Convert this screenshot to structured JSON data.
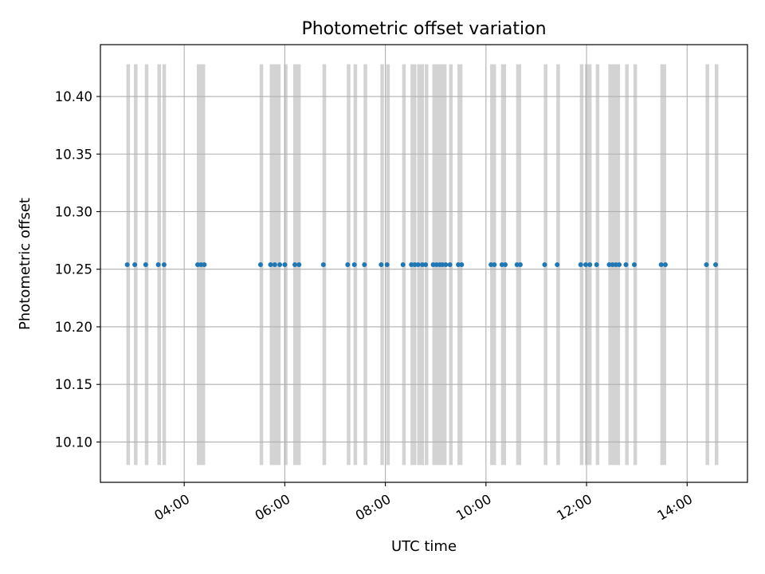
{
  "chart_data": {
    "type": "scatter",
    "title": "Photometric offset variation",
    "xlabel": "UTC time",
    "ylabel": "Photometric offset",
    "xlim": [
      "02:20",
      "15:12"
    ],
    "ylim": [
      10.065,
      10.445
    ],
    "x_ticks": [
      "04:00",
      "06:00",
      "08:00",
      "10:00",
      "12:00",
      "14:00"
    ],
    "y_ticks": [
      "10.10",
      "10.15",
      "10.20",
      "10.25",
      "10.30",
      "10.35",
      "10.40"
    ],
    "grid": true,
    "band_range": [
      10.08,
      10.428
    ],
    "band_color": "#d3d3d3",
    "point_color": "#1f77b4",
    "series": [
      {
        "points": [
          {
            "x": "02:52",
            "y": 10.254
          },
          {
            "x": "03:01",
            "y": 10.254
          },
          {
            "x": "03:14",
            "y": 10.254
          },
          {
            "x": "03:29",
            "y": 10.254
          },
          {
            "x": "03:36",
            "y": 10.254
          },
          {
            "x": "04:16",
            "y": 10.254
          },
          {
            "x": "04:20",
            "y": 10.254
          },
          {
            "x": "04:24",
            "y": 10.254
          },
          {
            "x": "05:31",
            "y": 10.254
          },
          {
            "x": "05:43",
            "y": 10.254
          },
          {
            "x": "05:48",
            "y": 10.254
          },
          {
            "x": "05:54",
            "y": 10.254
          },
          {
            "x": "06:00",
            "y": 10.254
          },
          {
            "x": "06:12",
            "y": 10.254
          },
          {
            "x": "06:17",
            "y": 10.254
          },
          {
            "x": "06:46",
            "y": 10.254
          },
          {
            "x": "07:15",
            "y": 10.254
          },
          {
            "x": "07:23",
            "y": 10.254
          },
          {
            "x": "07:35",
            "y": 10.254
          },
          {
            "x": "07:55",
            "y": 10.254
          },
          {
            "x": "08:02",
            "y": 10.254
          },
          {
            "x": "08:21",
            "y": 10.254
          },
          {
            "x": "08:31",
            "y": 10.254
          },
          {
            "x": "08:35",
            "y": 10.254
          },
          {
            "x": "08:39",
            "y": 10.254
          },
          {
            "x": "08:44",
            "y": 10.254
          },
          {
            "x": "08:48",
            "y": 10.254
          },
          {
            "x": "08:57",
            "y": 10.254
          },
          {
            "x": "09:01",
            "y": 10.254
          },
          {
            "x": "09:05",
            "y": 10.254
          },
          {
            "x": "09:08",
            "y": 10.254
          },
          {
            "x": "09:12",
            "y": 10.254
          },
          {
            "x": "09:17",
            "y": 10.254
          },
          {
            "x": "09:27",
            "y": 10.254
          },
          {
            "x": "09:31",
            "y": 10.254
          },
          {
            "x": "10:06",
            "y": 10.254
          },
          {
            "x": "10:10",
            "y": 10.254
          },
          {
            "x": "10:19",
            "y": 10.254
          },
          {
            "x": "10:23",
            "y": 10.254
          },
          {
            "x": "10:37",
            "y": 10.254
          },
          {
            "x": "10:41",
            "y": 10.254
          },
          {
            "x": "11:10",
            "y": 10.254
          },
          {
            "x": "11:25",
            "y": 10.254
          },
          {
            "x": "11:53",
            "y": 10.254
          },
          {
            "x": "11:59",
            "y": 10.254
          },
          {
            "x": "12:04",
            "y": 10.254
          },
          {
            "x": "12:12",
            "y": 10.254
          },
          {
            "x": "12:27",
            "y": 10.254
          },
          {
            "x": "12:31",
            "y": 10.254
          },
          {
            "x": "12:35",
            "y": 10.254
          },
          {
            "x": "12:39",
            "y": 10.254
          },
          {
            "x": "12:47",
            "y": 10.254
          },
          {
            "x": "12:57",
            "y": 10.254
          },
          {
            "x": "13:29",
            "y": 10.254
          },
          {
            "x": "13:34",
            "y": 10.254
          },
          {
            "x": "14:23",
            "y": 10.254
          },
          {
            "x": "14:34",
            "y": 10.254
          }
        ]
      }
    ],
    "bands": [
      [
        "02:51",
        "02:53"
      ],
      [
        "03:00",
        "03:02"
      ],
      [
        "03:13",
        "03:15"
      ],
      [
        "03:28",
        "03:31"
      ],
      [
        "03:34",
        "03:37"
      ],
      [
        "04:15",
        "04:25"
      ],
      [
        "05:30",
        "05:32"
      ],
      [
        "05:42",
        "05:55"
      ],
      [
        "05:59",
        "06:01"
      ],
      [
        "06:10",
        "06:19"
      ],
      [
        "06:45",
        "06:47"
      ],
      [
        "07:14",
        "07:17"
      ],
      [
        "07:22",
        "07:24"
      ],
      [
        "07:34",
        "07:36"
      ],
      [
        "07:54",
        "07:57"
      ],
      [
        "08:01",
        "08:03"
      ],
      [
        "08:20",
        "08:22"
      ],
      [
        "08:30",
        "08:37"
      ],
      [
        "08:38",
        "08:46"
      ],
      [
        "08:47",
        "08:49"
      ],
      [
        "08:56",
        "09:13"
      ],
      [
        "09:16",
        "09:18"
      ],
      [
        "09:26",
        "09:32"
      ],
      [
        "10:05",
        "10:12"
      ],
      [
        "10:18",
        "10:24"
      ],
      [
        "10:36",
        "10:42"
      ],
      [
        "11:09",
        "11:11"
      ],
      [
        "11:24",
        "11:26"
      ],
      [
        "11:52",
        "11:54"
      ],
      [
        "11:58",
        "12:06"
      ],
      [
        "12:11",
        "12:13"
      ],
      [
        "12:26",
        "12:40"
      ],
      [
        "12:46",
        "12:48"
      ],
      [
        "12:56",
        "12:58"
      ],
      [
        "13:28",
        "13:35"
      ],
      [
        "14:22",
        "14:24"
      ],
      [
        "14:33",
        "14:35"
      ]
    ]
  }
}
